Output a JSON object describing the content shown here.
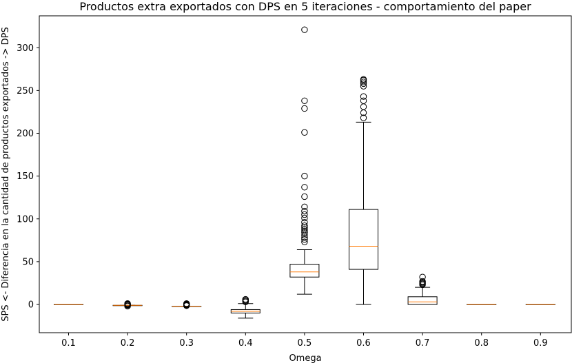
{
  "chart_data": {
    "type": "boxplot",
    "title": "Productos extra exportados con DPS en 5 iteraciones - comportamiento del paper",
    "xlabel": "Omega",
    "ylabel": "SPS <- Diferencia en la cantidad de productos exportados -> DPS",
    "categories": [
      "0.1",
      "0.2",
      "0.3",
      "0.4",
      "0.5",
      "0.6",
      "0.7",
      "0.8",
      "0.9"
    ],
    "yticks": [
      0,
      50,
      100,
      150,
      200,
      250,
      300
    ],
    "ytick_labels": [
      "0",
      "50",
      "100",
      "150",
      "200",
      "250",
      "300"
    ],
    "ylim": [
      -33,
      337
    ],
    "grid": false,
    "colors": {
      "box": "#000000",
      "median": "#ff7f0e",
      "flier": "#000000"
    },
    "boxes": [
      {
        "category": "0.1",
        "whislo": 0,
        "q1": 0,
        "med": 0,
        "q3": 0,
        "whishi": 0,
        "fliers": []
      },
      {
        "category": "0.2",
        "whislo": -1,
        "q1": -1,
        "med": -1,
        "q3": -1,
        "whishi": -1,
        "fliers": [
          -2,
          -1.5,
          -0.5,
          0,
          0.5,
          1
        ]
      },
      {
        "category": "0.3",
        "whislo": -2,
        "q1": -2,
        "med": -2,
        "q3": -2,
        "whishi": -2,
        "fliers": [
          -1.5,
          -1,
          -0.5,
          0,
          0.5,
          1
        ]
      },
      {
        "category": "0.4",
        "whislo": -16,
        "q1": -10,
        "med": -8,
        "q3": -6,
        "whishi": 1,
        "fliers": [
          3,
          4,
          5,
          6
        ]
      },
      {
        "category": "0.5",
        "whislo": 12,
        "q1": 32,
        "med": 38,
        "q3": 47,
        "whishi": 64,
        "fliers": [
          73,
          76,
          78,
          81,
          84,
          86,
          88,
          90,
          92,
          96,
          101,
          105,
          109,
          114,
          126,
          137,
          150,
          201,
          229,
          238,
          321
        ]
      },
      {
        "category": "0.6",
        "whislo": 0,
        "q1": 41,
        "med": 68,
        "q3": 111,
        "whishi": 213,
        "fliers": [
          218,
          224,
          231,
          238,
          243,
          255,
          258,
          260,
          262,
          263
        ]
      },
      {
        "category": "0.7",
        "whislo": 0,
        "q1": 0,
        "med": 3,
        "q3": 9,
        "whishi": 20,
        "fliers": [
          23,
          24,
          25,
          26,
          27,
          32
        ]
      },
      {
        "category": "0.8",
        "whislo": 0,
        "q1": 0,
        "med": 0,
        "q3": 0,
        "whishi": 0,
        "fliers": []
      },
      {
        "category": "0.9",
        "whislo": 0,
        "q1": 0,
        "med": 0,
        "q3": 0,
        "whishi": 0,
        "fliers": []
      }
    ]
  }
}
